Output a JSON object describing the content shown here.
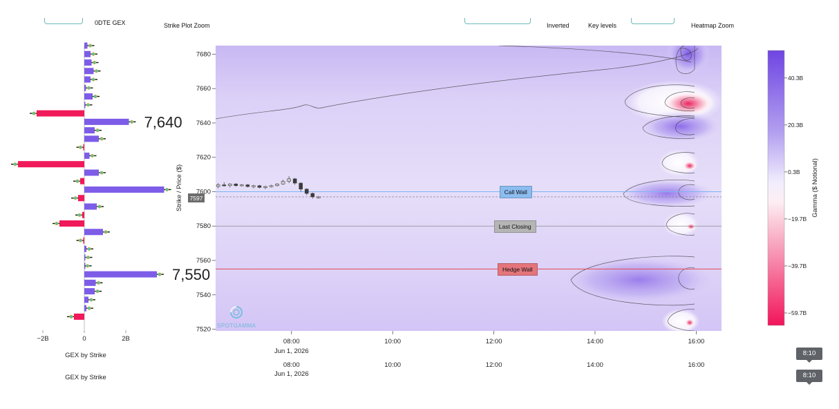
{
  "toolbar": {
    "odte_label": "0DTE GEX",
    "strike_zoom_label": "Strike Plot Zoom",
    "inverted_label": "Inverted",
    "key_levels_label": "Key levels",
    "heatmap_zoom_label": "Heatmap Zoom"
  },
  "colors": {
    "positive": "#7d5ce8",
    "negative": "#f0195a",
    "call_wall": "#7ab4f5",
    "hedge_wall": "#e5474f",
    "last_closing": "#8a8a8a"
  },
  "chart_data": [
    {
      "type": "bar",
      "orientation": "horizontal",
      "xlabel": "GEX by Strike",
      "x_ticks": [
        "−2B",
        "0",
        "2B"
      ],
      "x_range": [
        -3.4,
        3.8
      ],
      "y_range": [
        7517,
        7685
      ],
      "highlight_labels": [
        {
          "strike": 7640,
          "text": "7,640"
        },
        {
          "strike": 7550,
          "text": "7,550"
        }
      ],
      "strikes": [
        7685,
        7680,
        7675,
        7670,
        7665,
        7660,
        7655,
        7650,
        7645,
        7640,
        7635,
        7630,
        7625,
        7620,
        7615,
        7610,
        7605,
        7600,
        7595,
        7590,
        7585,
        7580,
        7575,
        7570,
        7565,
        7560,
        7555,
        7550,
        7545,
        7540,
        7535,
        7530,
        7525
      ],
      "values": [
        0.15,
        0.3,
        0.35,
        0.45,
        0.3,
        0.08,
        0.4,
        0.05,
        -2.3,
        2.15,
        0.5,
        0.7,
        -0.05,
        0.25,
        -3.2,
        0.7,
        -0.2,
        3.85,
        -0.3,
        0.6,
        -0.1,
        -1.2,
        0.9,
        -0.05,
        0.1,
        0.05,
        0.02,
        3.5,
        0.55,
        0.5,
        0.2,
        0.1,
        -0.5
      ]
    },
    {
      "type": "heatmap",
      "ylabel": "Strike / Price ($)",
      "y_ticks": [
        7680,
        7660,
        7640,
        7620,
        7600,
        7580,
        7560,
        7540,
        7520
      ],
      "y_range": [
        7519,
        7685
      ],
      "x_ticks": [
        "08:00",
        "10:00",
        "12:00",
        "14:00",
        "16:00"
      ],
      "x_date": "Jun 1, 2026",
      "x_range": [
        "06:30",
        "16:30"
      ],
      "colorbar": {
        "title": "Gamma ($ Notional)",
        "ticks": [
          "40.3B",
          "20.3B",
          "0.3B",
          "−19.7B",
          "−39.7B",
          "−59.7B"
        ],
        "range": [
          -65,
          52
        ]
      },
      "levels": [
        {
          "name": "Call Wall",
          "price": 7600
        },
        {
          "name": "Last Closing",
          "price": 7580
        },
        {
          "name": "Hedge Wall",
          "price": 7555
        }
      ],
      "current_price_label": "7597",
      "current_price": 7597,
      "watermark": "SPOTGAMMA",
      "candles": [
        {
          "t": "06:33",
          "o": 7603,
          "h": 7605,
          "l": 7602,
          "c": 7604
        },
        {
          "t": "06:40",
          "o": 7604,
          "h": 7605.5,
          "l": 7603,
          "c": 7603.5
        },
        {
          "t": "06:47",
          "o": 7603.5,
          "h": 7605,
          "l": 7602.5,
          "c": 7604.5
        },
        {
          "t": "06:54",
          "o": 7604.5,
          "h": 7605,
          "l": 7603,
          "c": 7603.5
        },
        {
          "t": "07:01",
          "o": 7603.5,
          "h": 7604.5,
          "l": 7603,
          "c": 7604
        },
        {
          "t": "07:08",
          "o": 7604,
          "h": 7604.5,
          "l": 7602.5,
          "c": 7603
        },
        {
          "t": "07:15",
          "o": 7603,
          "h": 7604,
          "l": 7602,
          "c": 7603.5
        },
        {
          "t": "07:22",
          "o": 7603.5,
          "h": 7604,
          "l": 7602,
          "c": 7602.5
        },
        {
          "t": "07:29",
          "o": 7602.5,
          "h": 7603.5,
          "l": 7601.5,
          "c": 7603
        },
        {
          "t": "07:36",
          "o": 7603,
          "h": 7604,
          "l": 7602.5,
          "c": 7603.5
        },
        {
          "t": "07:43",
          "o": 7603.5,
          "h": 7605,
          "l": 7603,
          "c": 7604.5
        },
        {
          "t": "07:50",
          "o": 7604.5,
          "h": 7607,
          "l": 7604,
          "c": 7606
        },
        {
          "t": "07:57",
          "o": 7606,
          "h": 7609,
          "l": 7605,
          "c": 7607.5
        },
        {
          "t": "08:04",
          "o": 7607.5,
          "h": 7608,
          "l": 7604,
          "c": 7605
        },
        {
          "t": "08:11",
          "o": 7605,
          "h": 7605.5,
          "l": 7600,
          "c": 7601.5
        },
        {
          "t": "08:18",
          "o": 7601.5,
          "h": 7602,
          "l": 7598,
          "c": 7599
        },
        {
          "t": "08:25",
          "o": 7599,
          "h": 7599.5,
          "l": 7596,
          "c": 7597
        },
        {
          "t": "08:32",
          "o": 7597,
          "h": 7597.5,
          "l": 7596,
          "c": 7597
        }
      ]
    }
  ],
  "tooltips": [
    "8:10",
    "8:10"
  ]
}
